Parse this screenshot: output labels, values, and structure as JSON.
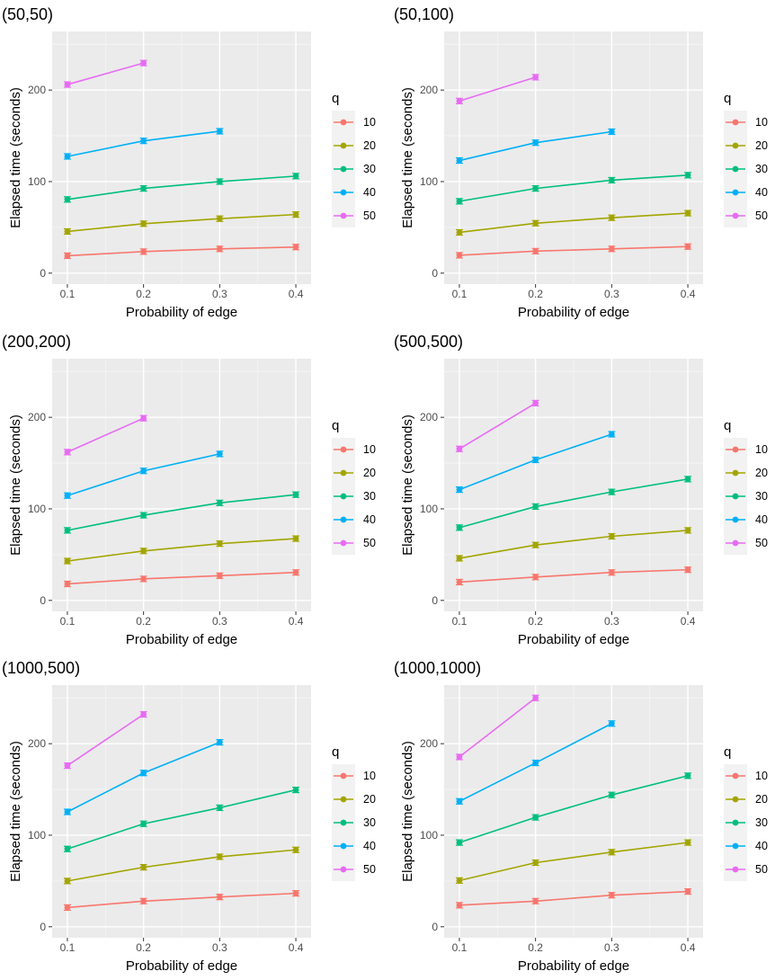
{
  "chart_data": [
    {
      "type": "line",
      "title": "(50,50)",
      "xlabel": "Probability of edge",
      "ylabel": "Elapsed time (seconds)",
      "x": [
        0.1,
        0.2,
        0.3,
        0.4
      ],
      "xticks": [
        "0.1",
        "0.2",
        "0.3",
        "0.4"
      ],
      "yticks": [
        0,
        100,
        200
      ],
      "ylim": [
        -12,
        264
      ],
      "legend_title": "q",
      "series": [
        {
          "name": "10",
          "color": "#F8766D",
          "values": [
            19,
            23.5,
            26.5,
            28.5
          ]
        },
        {
          "name": "20",
          "color": "#A3A500",
          "values": [
            45.5,
            54,
            59.5,
            64
          ]
        },
        {
          "name": "30",
          "color": "#00BF7D",
          "values": [
            80.5,
            92.5,
            100,
            106
          ]
        },
        {
          "name": "40",
          "color": "#00B0F6",
          "values": [
            127.5,
            144.5,
            155,
            null
          ]
        },
        {
          "name": "50",
          "color": "#E76BF3",
          "values": [
            206,
            229.5,
            null,
            null
          ]
        }
      ]
    },
    {
      "type": "line",
      "title": "(50,100)",
      "xlabel": "Probability of edge",
      "ylabel": "Elapsed time (seconds)",
      "x": [
        0.1,
        0.2,
        0.3,
        0.4
      ],
      "xticks": [
        "0.1",
        "0.2",
        "0.3",
        "0.4"
      ],
      "yticks": [
        0,
        100,
        200
      ],
      "ylim": [
        -12,
        264
      ],
      "legend_title": "q",
      "series": [
        {
          "name": "10",
          "color": "#F8766D",
          "values": [
            19.5,
            24,
            26.5,
            29
          ]
        },
        {
          "name": "20",
          "color": "#A3A500",
          "values": [
            44.5,
            54.5,
            60.5,
            65.5
          ]
        },
        {
          "name": "30",
          "color": "#00BF7D",
          "values": [
            78.5,
            92.5,
            101.5,
            107
          ]
        },
        {
          "name": "40",
          "color": "#00B0F6",
          "values": [
            123,
            142.5,
            154.5,
            null
          ]
        },
        {
          "name": "50",
          "color": "#E76BF3",
          "values": [
            188,
            214,
            null,
            null
          ]
        }
      ]
    },
    {
      "type": "line",
      "title": "(200,200)",
      "xlabel": "Probability of edge",
      "ylabel": "Elapsed time (seconds)",
      "x": [
        0.1,
        0.2,
        0.3,
        0.4
      ],
      "xticks": [
        "0.1",
        "0.2",
        "0.3",
        "0.4"
      ],
      "yticks": [
        0,
        100,
        200
      ],
      "ylim": [
        -12,
        264
      ],
      "legend_title": "q",
      "series": [
        {
          "name": "10",
          "color": "#F8766D",
          "values": [
            18,
            23.5,
            27,
            30.5
          ]
        },
        {
          "name": "20",
          "color": "#A3A500",
          "values": [
            43,
            54,
            62,
            67.5
          ]
        },
        {
          "name": "30",
          "color": "#00BF7D",
          "values": [
            76.5,
            93,
            106.5,
            115.5
          ]
        },
        {
          "name": "40",
          "color": "#00B0F6",
          "values": [
            114.5,
            141.5,
            160,
            null
          ]
        },
        {
          "name": "50",
          "color": "#E76BF3",
          "values": [
            162,
            199,
            null,
            null
          ]
        }
      ]
    },
    {
      "type": "line",
      "title": "(500,500)",
      "xlabel": "Probability of edge",
      "ylabel": "Elapsed time (seconds)",
      "x": [
        0.1,
        0.2,
        0.3,
        0.4
      ],
      "xticks": [
        "0.1",
        "0.2",
        "0.3",
        "0.4"
      ],
      "yticks": [
        0,
        100,
        200
      ],
      "ylim": [
        -12,
        264
      ],
      "legend_title": "q",
      "series": [
        {
          "name": "10",
          "color": "#F8766D",
          "values": [
            20,
            25.5,
            30.5,
            33.5
          ]
        },
        {
          "name": "20",
          "color": "#A3A500",
          "values": [
            46,
            60.5,
            70,
            76.5
          ]
        },
        {
          "name": "30",
          "color": "#00BF7D",
          "values": [
            79.5,
            102.5,
            118.5,
            132.5
          ]
        },
        {
          "name": "40",
          "color": "#00B0F6",
          "values": [
            121,
            153.5,
            181.5,
            null
          ]
        },
        {
          "name": "50",
          "color": "#E76BF3",
          "values": [
            165.5,
            215.5,
            null,
            null
          ]
        }
      ]
    },
    {
      "type": "line",
      "title": "(1000,500)",
      "xlabel": "Probability of edge",
      "ylabel": "Elapsed time (seconds)",
      "x": [
        0.1,
        0.2,
        0.3,
        0.4
      ],
      "xticks": [
        "0.1",
        "0.2",
        "0.3",
        "0.4"
      ],
      "yticks": [
        0,
        100,
        200
      ],
      "ylim": [
        -12,
        264
      ],
      "legend_title": "q",
      "series": [
        {
          "name": "10",
          "color": "#F8766D",
          "values": [
            21,
            28,
            32.5,
            36.5
          ]
        },
        {
          "name": "20",
          "color": "#A3A500",
          "values": [
            50,
            65,
            76.5,
            84
          ]
        },
        {
          "name": "30",
          "color": "#00BF7D",
          "values": [
            85,
            112.5,
            130,
            149.5
          ]
        },
        {
          "name": "40",
          "color": "#00B0F6",
          "values": [
            125.5,
            168,
            201.5,
            null
          ]
        },
        {
          "name": "50",
          "color": "#E76BF3",
          "values": [
            176,
            232,
            null,
            null
          ]
        }
      ]
    },
    {
      "type": "line",
      "title": "(1000,1000)",
      "xlabel": "Probability of edge",
      "ylabel": "Elapsed time (seconds)",
      "x": [
        0.1,
        0.2,
        0.3,
        0.4
      ],
      "xticks": [
        "0.1",
        "0.2",
        "0.3",
        "0.4"
      ],
      "yticks": [
        0,
        100,
        200
      ],
      "ylim": [
        -12,
        264
      ],
      "legend_title": "q",
      "series": [
        {
          "name": "10",
          "color": "#F8766D",
          "values": [
            23.5,
            28,
            34.5,
            38.5
          ]
        },
        {
          "name": "20",
          "color": "#A3A500",
          "values": [
            50.5,
            70,
            81.5,
            92
          ]
        },
        {
          "name": "30",
          "color": "#00BF7D",
          "values": [
            92,
            119.5,
            144,
            165
          ]
        },
        {
          "name": "40",
          "color": "#00B0F6",
          "values": [
            137,
            179,
            222,
            null
          ]
        },
        {
          "name": "50",
          "color": "#E76BF3",
          "values": [
            185.5,
            250,
            null,
            null
          ]
        }
      ]
    }
  ]
}
